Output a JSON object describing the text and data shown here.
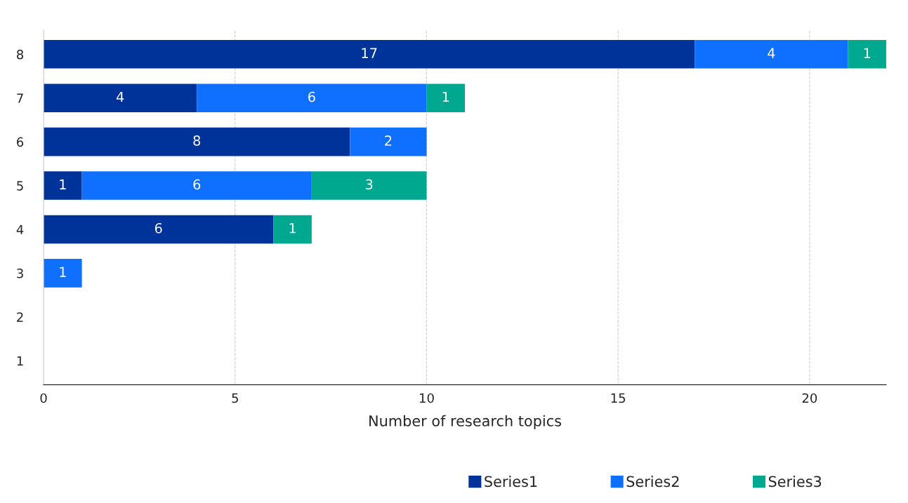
{
  "chart_data": {
    "type": "bar",
    "orientation": "horizontal",
    "stacked": true,
    "xlabel": "Number of research topics",
    "categories": [
      "8",
      "7",
      "6",
      "5",
      "4",
      "3",
      "2",
      "1"
    ],
    "series": [
      {
        "name": "Series1",
        "color": "#003399",
        "values": [
          17,
          4,
          8,
          1,
          6,
          null,
          null,
          null
        ]
      },
      {
        "name": "Series2",
        "color": "#0f6fff",
        "values": [
          4,
          6,
          2,
          6,
          null,
          1,
          null,
          null
        ]
      },
      {
        "name": "Series3",
        "color": "#00a88f",
        "values": [
          1,
          1,
          null,
          3,
          1,
          null,
          null,
          null
        ]
      }
    ],
    "xlim": [
      0,
      22
    ],
    "xticks": [
      0,
      5,
      10,
      15,
      20
    ],
    "grid": "x",
    "legend": "bottom",
    "data_labels": true
  }
}
